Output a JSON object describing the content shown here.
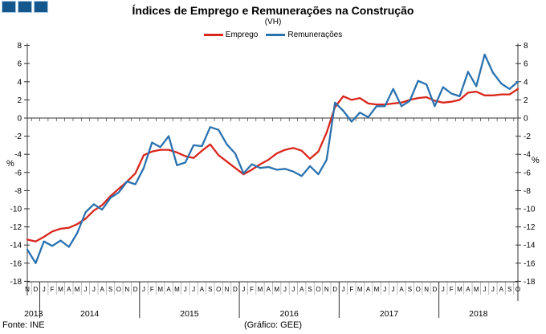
{
  "logo": {
    "squares": 3
  },
  "footer": {
    "source": "Fonte: INE",
    "credit": "(Gráfico: GEE)"
  },
  "chart_data": {
    "type": "line",
    "title": "Índices de Emprego e Remunerações na Construção",
    "subtitle": "(VH)",
    "ylabel_left": "%",
    "ylabel_right": "%",
    "ylim": [
      -18,
      8
    ],
    "y_ticks": [
      8,
      6,
      4,
      2,
      0,
      -2,
      -4,
      -6,
      -8,
      -10,
      -12,
      -14,
      -16,
      -18
    ],
    "grid": "zero-line-only",
    "legend_position": "top-center",
    "years": [
      {
        "label": "2013",
        "months": [
          "N",
          "D"
        ]
      },
      {
        "label": "2014",
        "months": [
          "J",
          "F",
          "M",
          "A",
          "M",
          "J",
          "J",
          "A",
          "S",
          "O",
          "N",
          "D"
        ]
      },
      {
        "label": "2015",
        "months": [
          "J",
          "F",
          "M",
          "A",
          "M",
          "J",
          "J",
          "A",
          "S",
          "O",
          "N",
          "D"
        ]
      },
      {
        "label": "2016",
        "months": [
          "J",
          "F",
          "M",
          "A",
          "M",
          "J",
          "J",
          "A",
          "S",
          "O",
          "N",
          "D"
        ]
      },
      {
        "label": "2017",
        "months": [
          "J",
          "F",
          "M",
          "A",
          "M",
          "J",
          "J",
          "A",
          "S",
          "O",
          "N",
          "D"
        ]
      },
      {
        "label": "2018",
        "months": [
          "J",
          "F",
          "M",
          "A",
          "M",
          "J",
          "J",
          "A",
          "S",
          "O"
        ]
      }
    ],
    "series": [
      {
        "name": "Emprego",
        "color": "#D9261C",
        "values": [
          -13.4,
          -13.6,
          -13.1,
          -12.5,
          -12.2,
          -12.1,
          -11.7,
          -11.1,
          -10.2,
          -9.6,
          -8.6,
          -7.8,
          -7.0,
          -6.1,
          -4.1,
          -3.7,
          -3.5,
          -3.5,
          -3.8,
          -4.2,
          -4.4,
          -3.6,
          -2.9,
          -4.1,
          -4.8,
          -5.5,
          -6.2,
          -5.7,
          -5.1,
          -4.6,
          -3.9,
          -3.5,
          -3.3,
          -3.6,
          -4.5,
          -3.7,
          -1.6,
          1.2,
          2.4,
          2.0,
          2.2,
          1.6,
          1.5,
          1.5,
          1.6,
          1.7,
          2.0,
          2.2,
          2.3,
          1.9,
          1.7,
          1.8,
          2.0,
          2.8,
          2.9,
          2.5,
          2.5,
          2.6,
          2.6,
          3.2
        ]
      },
      {
        "name": "Remunerações",
        "color": "#2A72B0",
        "values": [
          -14.5,
          -16.0,
          -13.6,
          -14.1,
          -13.5,
          -14.2,
          -12.7,
          -10.4,
          -9.5,
          -10.1,
          -8.8,
          -8.2,
          -7.0,
          -7.3,
          -5.5,
          -2.7,
          -3.2,
          -2.0,
          -5.2,
          -4.9,
          -3.0,
          -3.1,
          -1.0,
          -1.3,
          -2.9,
          -3.9,
          -6.1,
          -5.1,
          -5.5,
          -5.4,
          -5.7,
          -5.6,
          -5.9,
          -6.4,
          -5.3,
          -6.2,
          -4.6,
          1.7,
          0.8,
          -0.4,
          0.6,
          0.1,
          1.3,
          1.3,
          3.2,
          1.3,
          1.9,
          4.1,
          3.7,
          1.3,
          3.4,
          2.7,
          2.4,
          5.1,
          3.5,
          7.0,
          5.0,
          3.8,
          3.2,
          4.0
        ]
      }
    ]
  }
}
